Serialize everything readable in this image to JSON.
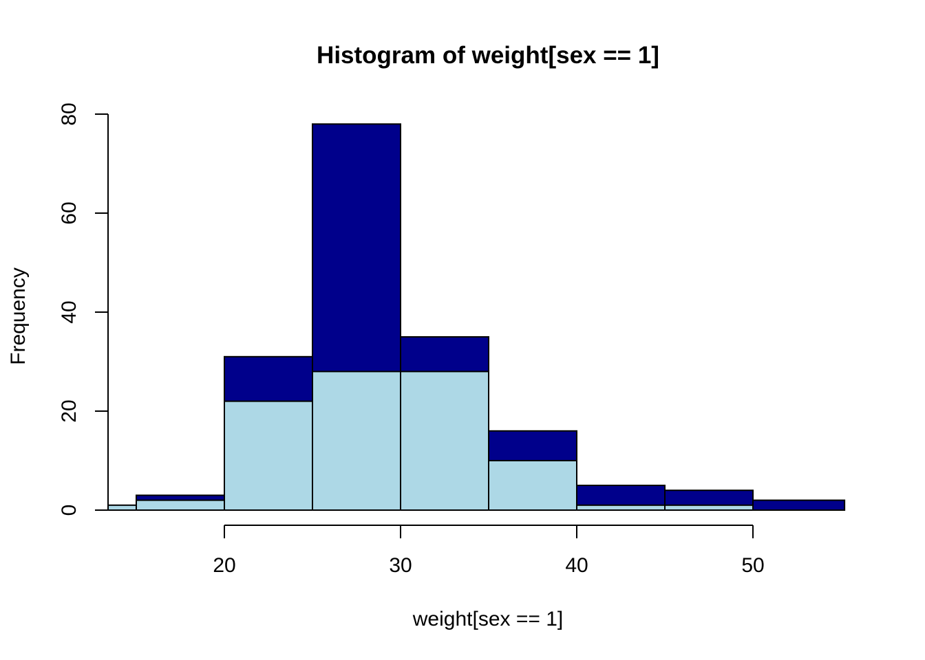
{
  "chart_data": {
    "type": "bar",
    "title": "Histogram of weight[sex == 1]",
    "xlabel": "weight[sex == 1]",
    "ylabel": "Frequency",
    "x_ticks": [
      20,
      30,
      40,
      50
    ],
    "y_ticks": [
      0,
      20,
      40,
      60,
      80
    ],
    "xlim": [
      13.4,
      55.2
    ],
    "ylim": [
      0,
      80
    ],
    "grid": false,
    "series": [
      {
        "color": "#00008B",
        "bins": [
          {
            "start": 13.4,
            "end": 15,
            "value": 0
          },
          {
            "start": 15,
            "end": 20,
            "value": 3
          },
          {
            "start": 20,
            "end": 25,
            "value": 31
          },
          {
            "start": 25,
            "end": 30,
            "value": 78
          },
          {
            "start": 30,
            "end": 35,
            "value": 35
          },
          {
            "start": 35,
            "end": 40,
            "value": 16
          },
          {
            "start": 40,
            "end": 45,
            "value": 5
          },
          {
            "start": 45,
            "end": 50,
            "value": 4
          },
          {
            "start": 50,
            "end": 55.2,
            "value": 2
          }
        ]
      },
      {
        "color": "#ADD8E6",
        "bins": [
          {
            "start": 13.4,
            "end": 15,
            "value": 1
          },
          {
            "start": 15,
            "end": 20,
            "value": 2
          },
          {
            "start": 20,
            "end": 25,
            "value": 22
          },
          {
            "start": 25,
            "end": 30,
            "value": 28
          },
          {
            "start": 30,
            "end": 35,
            "value": 28
          },
          {
            "start": 35,
            "end": 40,
            "value": 10
          },
          {
            "start": 40,
            "end": 45,
            "value": 1
          },
          {
            "start": 45,
            "end": 50,
            "value": 1
          },
          {
            "start": 50,
            "end": 55.2,
            "value": 0
          }
        ]
      }
    ]
  }
}
